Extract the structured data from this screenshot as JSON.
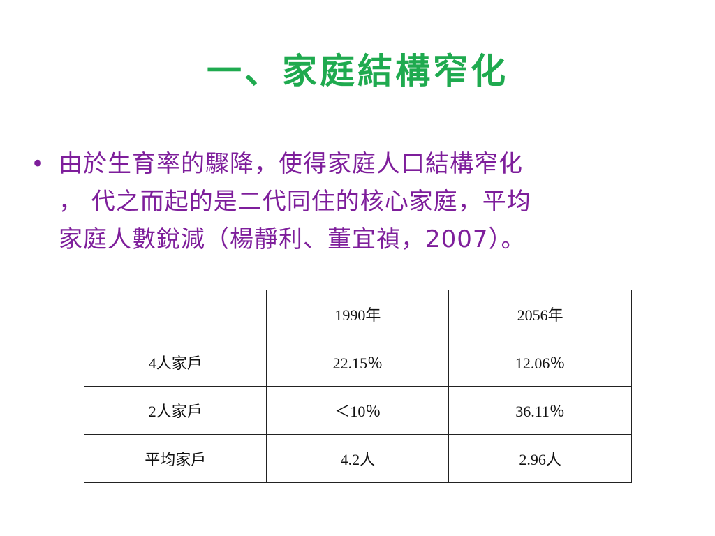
{
  "title": "一、家庭結構窄化",
  "bullet": {
    "lines": [
      "由於生育率的驟降，使得家庭人口結構窄化",
      "， 代之而起的是二代同住的核心家庭，平均",
      "家庭人數銳減（楊靜利、董宜禎，2007）。"
    ]
  },
  "table": {
    "header": [
      "",
      "1990年",
      "2056年"
    ],
    "rows": [
      [
        "4人家戶",
        "22.15％",
        "12.06％"
      ],
      [
        "2人家戶",
        "＜10％",
        "36.11％"
      ],
      [
        "平均家戶",
        "4.2人",
        "2.96人"
      ]
    ]
  },
  "colors": {
    "title": "#1faa4f",
    "body_text": "#7e1e9b"
  }
}
